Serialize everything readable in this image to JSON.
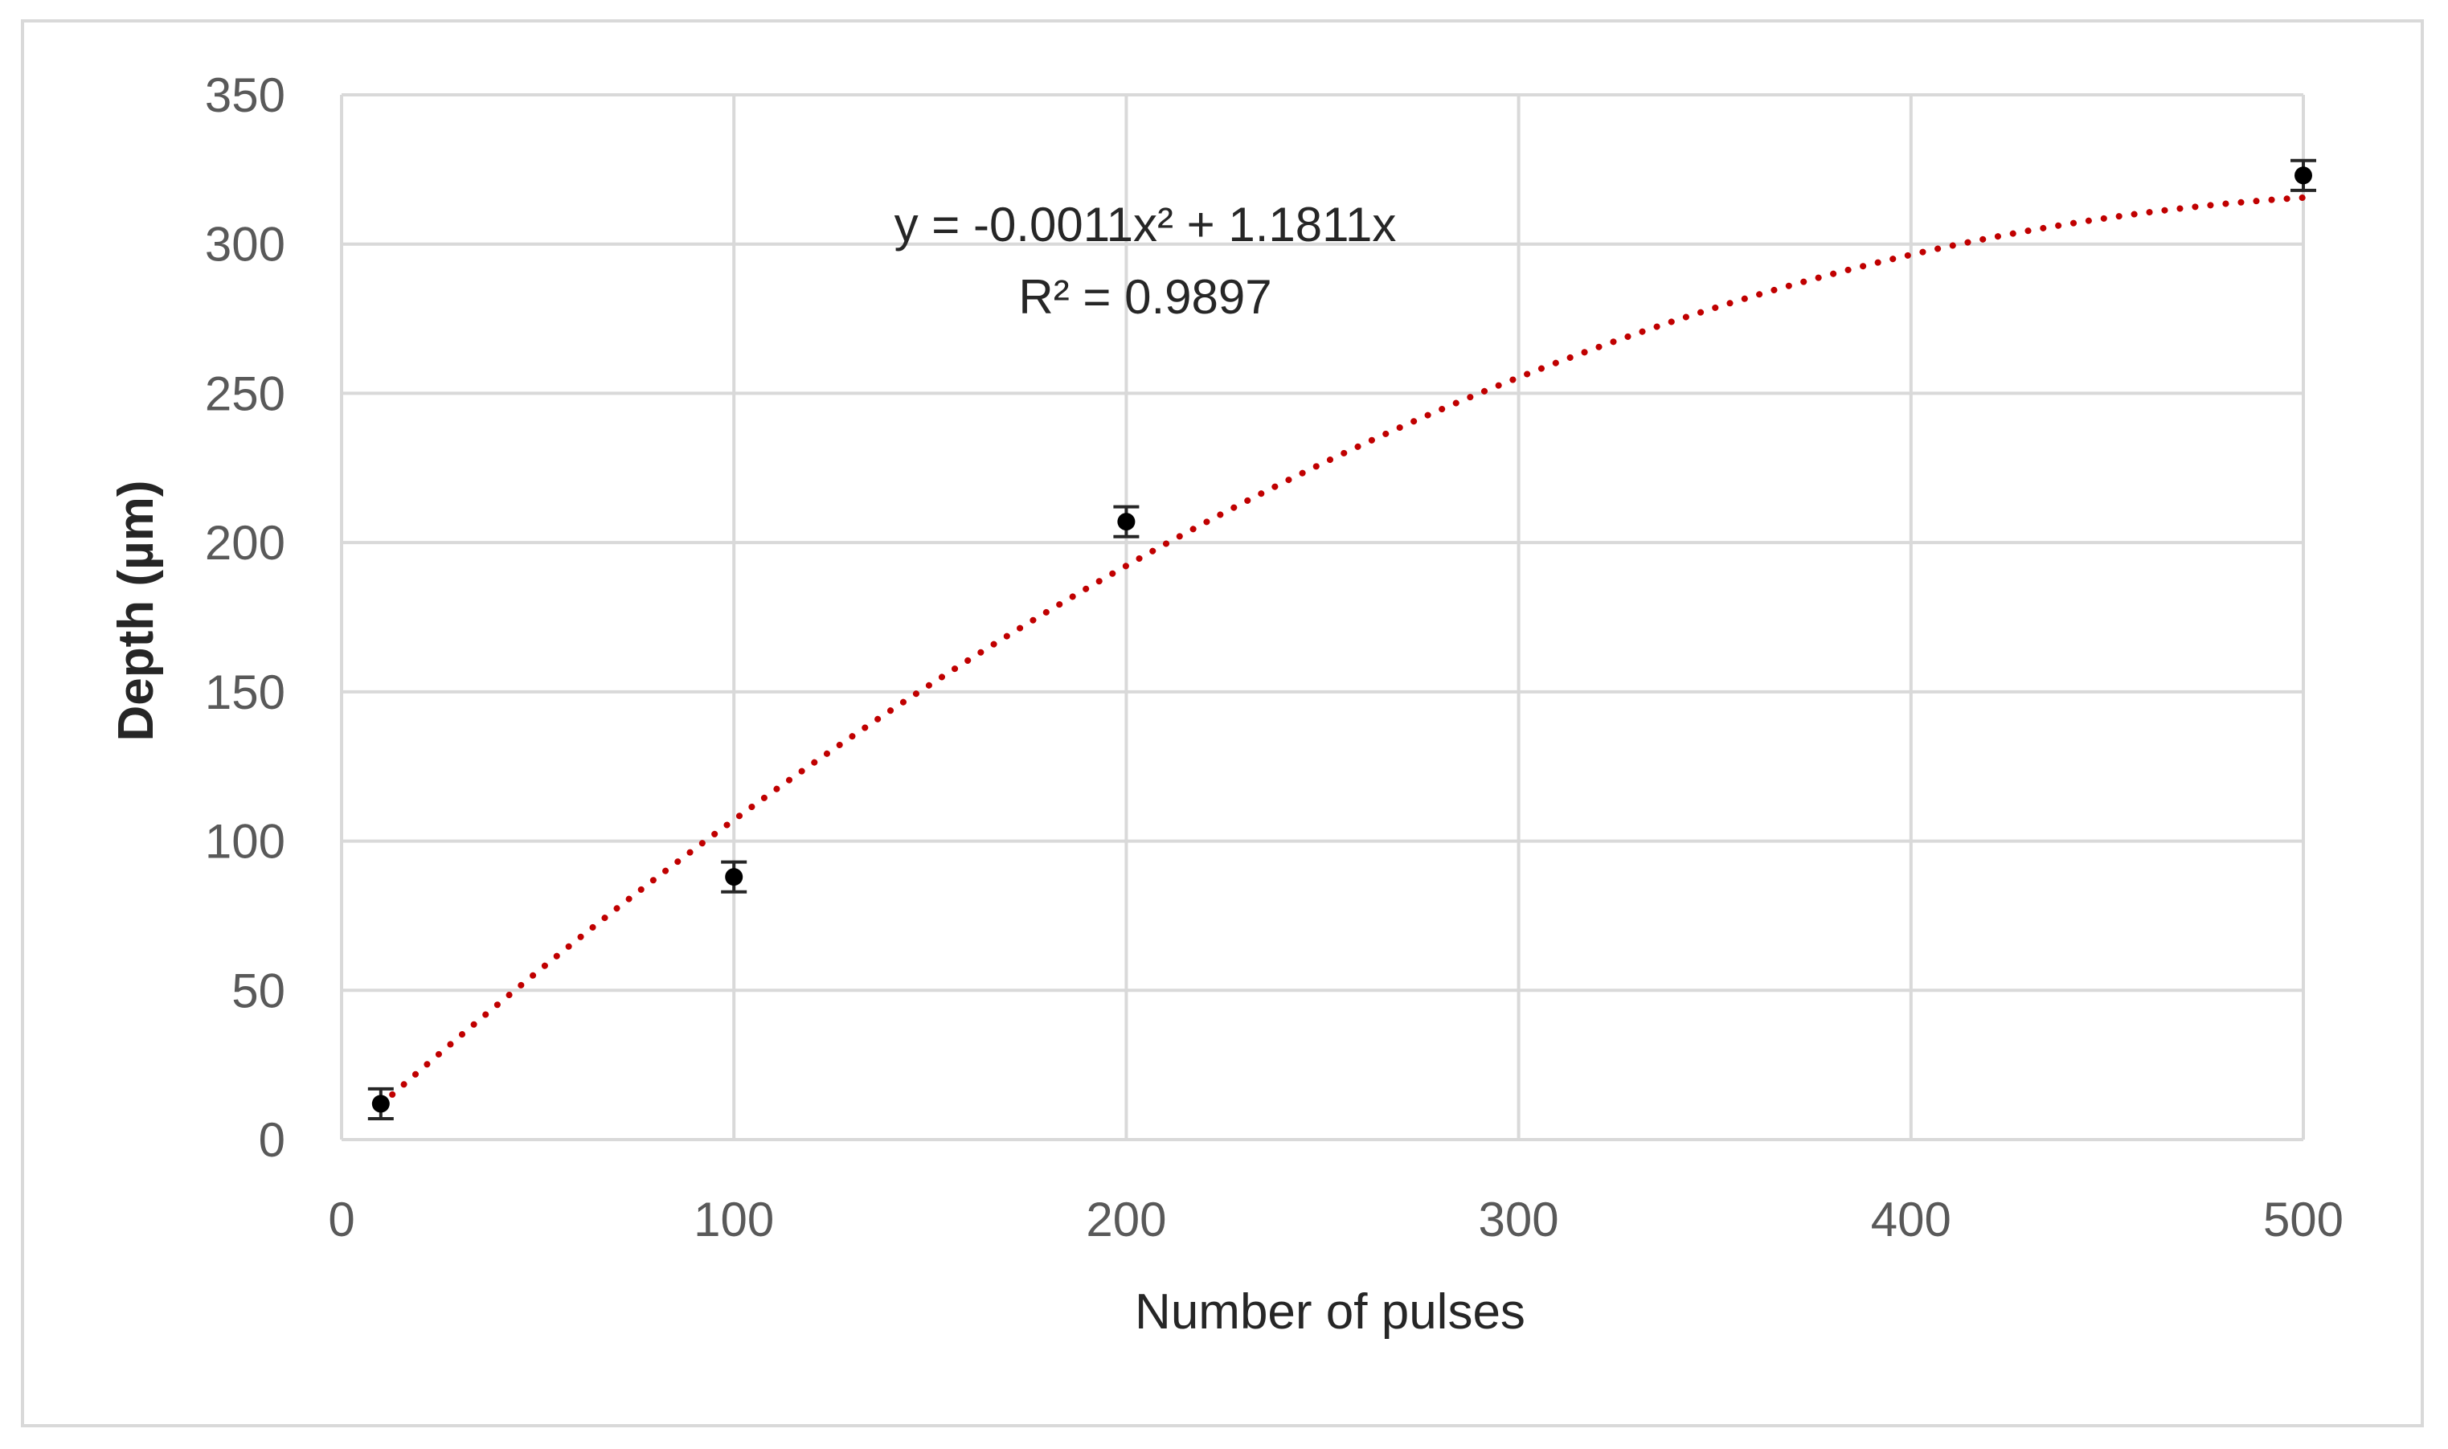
{
  "chart_data": {
    "type": "scatter",
    "title": "",
    "xlabel": "Number of pulses",
    "ylabel": "Depth (µm)",
    "xlim": [
      0,
      500
    ],
    "ylim": [
      0,
      350
    ],
    "x_ticks": [
      0,
      100,
      200,
      300,
      400,
      500
    ],
    "y_ticks": [
      0,
      50,
      100,
      150,
      200,
      250,
      300,
      350
    ],
    "x_tick_labels": [
      "0",
      "100",
      "200",
      "300",
      "400",
      "500"
    ],
    "y_tick_labels": [
      "0",
      "50",
      "100",
      "150",
      "200",
      "250",
      "300",
      "350"
    ],
    "grid": true,
    "legend": "none",
    "series": [
      {
        "x": [
          10,
          100,
          200,
          500
        ],
        "y": [
          12,
          88,
          207,
          323
        ],
        "error": [
          5,
          5,
          5,
          5
        ],
        "marker_color": "#000000"
      }
    ],
    "trendline": {
      "type": "polynomial",
      "coefficients": {
        "a": -0.0011,
        "b": 1.1811,
        "c": 0
      },
      "color": "#c00000",
      "style": "dotted",
      "x_range": [
        10,
        500
      ]
    },
    "annotations": {
      "equation": "y = -0.0011x² + 1.1811x",
      "r_squared": "R² = 0.9897"
    },
    "colors": {
      "grid": "#d9d9d9",
      "tick_text": "#595959",
      "title_text": "#262626"
    }
  }
}
